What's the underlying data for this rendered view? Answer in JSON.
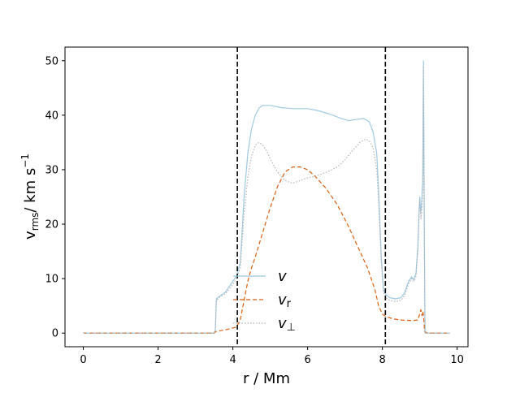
{
  "chart_data": {
    "type": "line",
    "xlabel": "r / Mm",
    "ylabel": {
      "main": "v",
      "sub": "rms",
      "unit": "/ km s",
      "exp": "−1"
    },
    "xlim": [
      -0.49,
      10.29
    ],
    "ylim": [
      -2.5,
      52.5
    ],
    "xticks": [
      0,
      2,
      4,
      6,
      8,
      10
    ],
    "yticks": [
      0,
      10,
      20,
      30,
      40,
      50
    ],
    "legend": {
      "placement": "lower-center",
      "entries": [
        {
          "label": "v",
          "sub": "",
          "series": "v"
        },
        {
          "label": "v",
          "sub": "r",
          "series": "vr"
        },
        {
          "label": "v",
          "sub": "⊥",
          "series": "vperp"
        }
      ]
    },
    "vlines": [
      4.12,
      8.08
    ],
    "series": [
      {
        "name": "v",
        "color": "#9ecae1",
        "style": "solid",
        "points": [
          [
            0,
            0
          ],
          [
            1,
            0
          ],
          [
            2,
            0
          ],
          [
            3,
            0
          ],
          [
            3.5,
            0
          ],
          [
            3.53,
            0.5
          ],
          [
            3.56,
            6.3
          ],
          [
            3.65,
            6.8
          ],
          [
            3.8,
            7.5
          ],
          [
            3.95,
            9.0
          ],
          [
            4.1,
            10.5
          ],
          [
            4.2,
            13.0
          ],
          [
            4.3,
            25.0
          ],
          [
            4.4,
            33.0
          ],
          [
            4.5,
            37.5
          ],
          [
            4.6,
            40.0
          ],
          [
            4.7,
            41.3
          ],
          [
            4.8,
            41.8
          ],
          [
            5.0,
            41.8
          ],
          [
            5.3,
            41.4
          ],
          [
            5.6,
            41.2
          ],
          [
            6.0,
            41.2
          ],
          [
            6.3,
            40.8
          ],
          [
            6.6,
            40.2
          ],
          [
            6.9,
            39.4
          ],
          [
            7.1,
            39.0
          ],
          [
            7.3,
            39.2
          ],
          [
            7.5,
            39.4
          ],
          [
            7.65,
            38.8
          ],
          [
            7.75,
            37.0
          ],
          [
            7.85,
            33.0
          ],
          [
            7.9,
            26.0
          ],
          [
            7.97,
            14.0
          ],
          [
            8.03,
            8.0
          ],
          [
            8.1,
            7.0
          ],
          [
            8.2,
            6.5
          ],
          [
            8.35,
            6.3
          ],
          [
            8.5,
            6.5
          ],
          [
            8.6,
            7.5
          ],
          [
            8.7,
            9.5
          ],
          [
            8.78,
            10.3
          ],
          [
            8.83,
            9.8
          ],
          [
            8.9,
            11.0
          ],
          [
            8.95,
            16.0
          ],
          [
            8.98,
            22.0
          ],
          [
            9.0,
            25.0
          ],
          [
            9.03,
            22.0
          ],
          [
            9.05,
            24.0
          ],
          [
            9.08,
            28.0
          ],
          [
            9.1,
            50.0
          ],
          [
            9.12,
            20.0
          ],
          [
            9.14,
            0.0
          ],
          [
            9.3,
            0
          ],
          [
            9.5,
            0
          ],
          [
            9.8,
            0
          ]
        ]
      },
      {
        "name": "vr",
        "color": "#d95f0e",
        "style": "dashed",
        "points": [
          [
            0,
            0
          ],
          [
            1,
            0
          ],
          [
            2,
            0
          ],
          [
            3,
            0
          ],
          [
            3.5,
            0
          ],
          [
            3.55,
            0.3
          ],
          [
            3.8,
            0.6
          ],
          [
            4.1,
            1.1
          ],
          [
            4.2,
            2.5
          ],
          [
            4.3,
            6.0
          ],
          [
            4.4,
            9.5
          ],
          [
            4.5,
            12.0
          ],
          [
            4.6,
            14.0
          ],
          [
            4.8,
            18.5
          ],
          [
            5.0,
            23.0
          ],
          [
            5.2,
            27.0
          ],
          [
            5.4,
            29.6
          ],
          [
            5.6,
            30.5
          ],
          [
            5.8,
            30.5
          ],
          [
            6.0,
            30.0
          ],
          [
            6.2,
            28.8
          ],
          [
            6.5,
            26.5
          ],
          [
            6.8,
            23.5
          ],
          [
            7.1,
            19.5
          ],
          [
            7.4,
            15.0
          ],
          [
            7.6,
            12.0
          ],
          [
            7.8,
            8.0
          ],
          [
            7.9,
            5.0
          ],
          [
            8.0,
            3.5
          ],
          [
            8.1,
            3.0
          ],
          [
            8.3,
            2.6
          ],
          [
            8.5,
            2.4
          ],
          [
            8.8,
            2.3
          ],
          [
            8.95,
            2.4
          ],
          [
            9.0,
            3.5
          ],
          [
            9.03,
            4.3
          ],
          [
            9.06,
            3.2
          ],
          [
            9.08,
            4.0
          ],
          [
            9.1,
            3.3
          ],
          [
            9.13,
            0.3
          ],
          [
            9.2,
            0
          ],
          [
            9.5,
            0
          ],
          [
            9.8,
            0
          ]
        ]
      },
      {
        "name": "vperp",
        "color": "#b3b3b3",
        "style": "dotted",
        "points": [
          [
            0,
            0
          ],
          [
            1,
            0
          ],
          [
            2,
            0
          ],
          [
            3,
            0
          ],
          [
            3.5,
            0
          ],
          [
            3.53,
            0.5
          ],
          [
            3.56,
            6.0
          ],
          [
            3.65,
            6.6
          ],
          [
            3.8,
            7.2
          ],
          [
            3.95,
            8.5
          ],
          [
            4.1,
            10.0
          ],
          [
            4.2,
            12.0
          ],
          [
            4.3,
            22.0
          ],
          [
            4.4,
            28.5
          ],
          [
            4.5,
            32.5
          ],
          [
            4.6,
            34.5
          ],
          [
            4.7,
            35.0
          ],
          [
            4.8,
            34.5
          ],
          [
            4.9,
            33.5
          ],
          [
            5.0,
            32.0
          ],
          [
            5.2,
            29.5
          ],
          [
            5.4,
            28.0
          ],
          [
            5.6,
            27.5
          ],
          [
            5.8,
            28.0
          ],
          [
            6.0,
            28.5
          ],
          [
            6.2,
            28.8
          ],
          [
            6.5,
            29.5
          ],
          [
            6.8,
            30.5
          ],
          [
            7.0,
            31.8
          ],
          [
            7.2,
            33.5
          ],
          [
            7.4,
            35.0
          ],
          [
            7.55,
            35.6
          ],
          [
            7.65,
            35.3
          ],
          [
            7.75,
            34.0
          ],
          [
            7.85,
            30.0
          ],
          [
            7.9,
            24.0
          ],
          [
            7.97,
            13.0
          ],
          [
            8.03,
            7.5
          ],
          [
            8.1,
            6.5
          ],
          [
            8.2,
            6.0
          ],
          [
            8.35,
            5.8
          ],
          [
            8.5,
            6.0
          ],
          [
            8.6,
            7.0
          ],
          [
            8.7,
            9.0
          ],
          [
            8.78,
            10.0
          ],
          [
            8.85,
            9.5
          ],
          [
            8.9,
            10.5
          ],
          [
            8.95,
            15.0
          ],
          [
            8.98,
            21.0
          ],
          [
            9.0,
            24.5
          ],
          [
            9.03,
            21.0
          ],
          [
            9.06,
            23.0
          ],
          [
            9.08,
            27.0
          ],
          [
            9.1,
            49.0
          ],
          [
            9.12,
            19.0
          ],
          [
            9.14,
            0.0
          ],
          [
            9.3,
            0
          ],
          [
            9.5,
            0
          ],
          [
            9.8,
            0
          ]
        ]
      }
    ]
  }
}
